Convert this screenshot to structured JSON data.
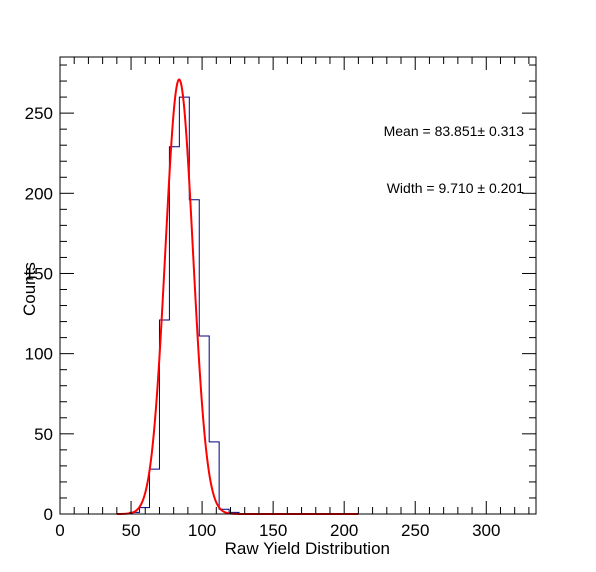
{
  "chart_data": {
    "type": "histogram",
    "xlabel": "Raw Yield Distribution",
    "ylabel": "Counts",
    "xlim": [
      0,
      335
    ],
    "ylim": [
      0,
      285
    ],
    "x_ticks": [
      "0",
      "50",
      "100",
      "150",
      "200",
      "250",
      "300"
    ],
    "y_ticks": [
      "0",
      "50",
      "100",
      "150",
      "200",
      "250"
    ],
    "annotations": {
      "mean": "Mean = 83.851± 0.313",
      "width": "Width = 9.710 ± 0.201"
    },
    "histogram": {
      "bin_width": 7,
      "bin_edges": [
        0,
        7,
        14,
        21,
        28,
        35,
        42,
        49,
        56,
        63,
        70,
        77,
        84,
        91,
        98,
        105,
        112,
        119,
        126,
        133,
        140,
        147,
        154,
        161,
        168,
        175,
        182,
        189,
        196,
        203,
        210
      ],
      "counts": [
        0,
        0,
        0,
        0,
        0,
        0,
        0,
        1,
        4,
        28,
        121,
        229,
        260,
        196,
        111,
        45,
        3,
        1,
        0,
        0,
        0,
        0,
        0,
        0,
        0,
        0,
        0,
        0,
        0,
        0
      ],
      "color": "#000080"
    },
    "fit": {
      "name": "",
      "function": "gaus",
      "mean": 83.851,
      "sigma": 9.71,
      "amplitude": 271,
      "color": "#ff0000"
    }
  }
}
